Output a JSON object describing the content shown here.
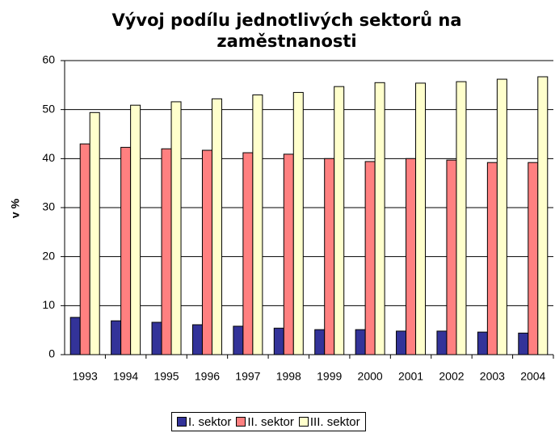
{
  "chart_data": {
    "type": "bar",
    "title": "Vývoj podílu jednotlivých sektorů na zaměstnanosti",
    "y_label": "v %",
    "categories": [
      "1993",
      "1994",
      "1995",
      "1996",
      "1997",
      "1998",
      "1999",
      "2000",
      "2001",
      "2002",
      "2003",
      "2004"
    ],
    "series": [
      {
        "name": "I. sektor",
        "color": "#333399",
        "values": [
          7.6,
          6.9,
          6.6,
          6.1,
          5.8,
          5.4,
          5.1,
          5.1,
          4.8,
          4.8,
          4.6,
          4.4
        ]
      },
      {
        "name": "II. sektor",
        "color": "#ff8080",
        "values": [
          43.0,
          42.3,
          42.0,
          41.7,
          41.2,
          40.9,
          40.0,
          39.4,
          40.0,
          39.7,
          39.2,
          39.2
        ]
      },
      {
        "name": "III. sektor",
        "color": "#ffffcc",
        "values": [
          49.4,
          50.9,
          51.6,
          52.2,
          53.0,
          53.5,
          54.7,
          55.5,
          55.4,
          55.7,
          56.2,
          56.7
        ]
      }
    ],
    "ylim": [
      0,
      60
    ],
    "yticks": [
      0,
      10,
      20,
      30,
      40,
      50,
      60
    ],
    "grid": true,
    "legend": "bottom"
  }
}
